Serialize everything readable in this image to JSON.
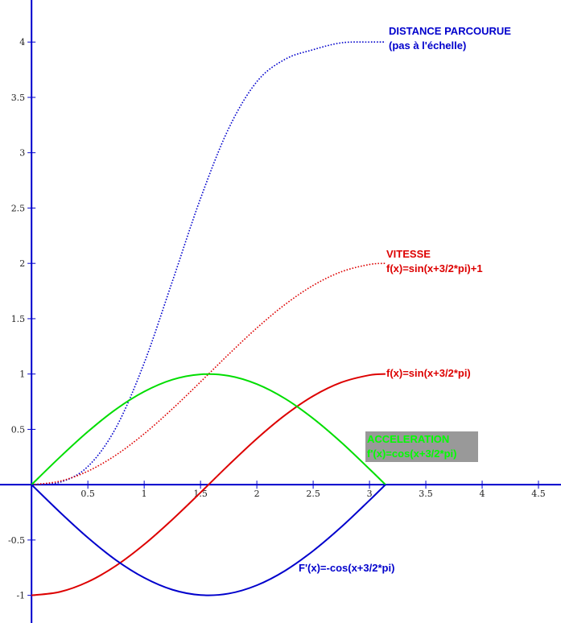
{
  "chart_data": {
    "type": "line",
    "xlim": [
      -0.28,
      4.7
    ],
    "ylim": [
      -1.25,
      4.38
    ],
    "grid": false,
    "x_ticks": [
      {
        "value": 0.5,
        "label": "0.5"
      },
      {
        "value": 1,
        "label": "1"
      },
      {
        "value": 1.5,
        "label": "1.5"
      },
      {
        "value": 2,
        "label": "2"
      },
      {
        "value": 2.5,
        "label": "2.5"
      },
      {
        "value": 3,
        "label": "3"
      },
      {
        "value": 3.5,
        "label": "3.5"
      },
      {
        "value": 4,
        "label": "4"
      },
      {
        "value": 4.5,
        "label": "4.5"
      }
    ],
    "y_ticks": [
      {
        "value": -1,
        "label": "-1"
      },
      {
        "value": -0.5,
        "label": "-0.5"
      },
      {
        "value": 0.5,
        "label": "0.5"
      },
      {
        "value": 1,
        "label": "1"
      },
      {
        "value": 1.5,
        "label": "1.5"
      },
      {
        "value": 2,
        "label": "2"
      },
      {
        "value": 2.5,
        "label": "2.5"
      },
      {
        "value": 3,
        "label": "3"
      },
      {
        "value": 3.5,
        "label": "3.5"
      },
      {
        "value": 4,
        "label": "4"
      }
    ],
    "series": [
      {
        "key": "distance",
        "color": "#0000cc",
        "style": "dotted",
        "x": [
          0,
          0.25,
          0.5,
          0.75,
          1,
          1.25,
          1.5,
          1.75,
          2,
          2.25,
          2.5,
          2.75,
          3,
          3.14159
        ],
        "y": [
          0,
          0.021,
          0.164,
          0.516,
          1.1,
          1.837,
          2.586,
          3.219,
          3.642,
          3.844,
          3.931,
          3.993,
          4.0,
          4.0
        ]
      },
      {
        "key": "vitesse",
        "color": "#dd0000",
        "style": "dotted",
        "x": [
          0,
          0.25,
          0.5,
          0.75,
          1,
          1.25,
          1.5,
          1.75,
          2,
          2.25,
          2.5,
          2.75,
          3,
          3.14159
        ],
        "y": [
          0,
          0.031,
          0.122,
          0.268,
          0.46,
          0.685,
          0.929,
          1.178,
          1.416,
          1.628,
          1.801,
          1.924,
          1.99,
          2.0
        ]
      },
      {
        "key": "sin",
        "color": "#dd0000",
        "style": "solid",
        "x": [
          0,
          0.25,
          0.5,
          0.75,
          1,
          1.25,
          1.5,
          1.75,
          2,
          2.25,
          2.5,
          2.75,
          3,
          3.14159
        ],
        "y": [
          -1,
          -0.969,
          -0.878,
          -0.732,
          -0.54,
          -0.315,
          -0.071,
          0.178,
          0.416,
          0.628,
          0.801,
          0.924,
          0.99,
          1.0
        ]
      },
      {
        "key": "acceleration",
        "color": "#00dd00",
        "style": "solid",
        "x": [
          0,
          0.25,
          0.5,
          0.75,
          1,
          1.25,
          1.5,
          1.75,
          2,
          2.25,
          2.5,
          2.75,
          3,
          3.14159
        ],
        "y": [
          0,
          0.247,
          0.479,
          0.682,
          0.841,
          0.949,
          0.997,
          0.984,
          0.909,
          0.778,
          0.598,
          0.382,
          0.141,
          0
        ]
      },
      {
        "key": "derivee",
        "color": "#0000cc",
        "style": "solid",
        "x": [
          0,
          0.25,
          0.5,
          0.75,
          1,
          1.25,
          1.5,
          1.75,
          2,
          2.25,
          2.5,
          2.75,
          3,
          3.14159
        ],
        "y": [
          0,
          -0.247,
          -0.479,
          -0.682,
          -0.841,
          -0.949,
          -0.997,
          -0.984,
          -0.909,
          -0.778,
          -0.598,
          -0.382,
          -0.141,
          0
        ]
      }
    ],
    "annotations": [
      {
        "key": "distance",
        "lines": [
          "DISTANCE PARCOURUE",
          "(pas à l'échelle)"
        ],
        "color": "#0000cc"
      },
      {
        "key": "vitesse",
        "lines": [
          "VITESSE",
          "f(x)=sin(x+3/2*pi)+1"
        ],
        "color": "#dd0000"
      },
      {
        "key": "sin",
        "lines": [
          "f(x)=sin(x+3/2*pi)"
        ],
        "color": "#dd0000"
      },
      {
        "key": "acceleration",
        "lines": [
          "ACCELERATION",
          "f'(x)=cos(x+3/2*pi)"
        ],
        "color": "#00ff00",
        "background": "#999999"
      },
      {
        "key": "derivee",
        "lines": [
          "F'(x)=-cos(x+3/2*pi)"
        ],
        "color": "#0000cc"
      }
    ]
  }
}
